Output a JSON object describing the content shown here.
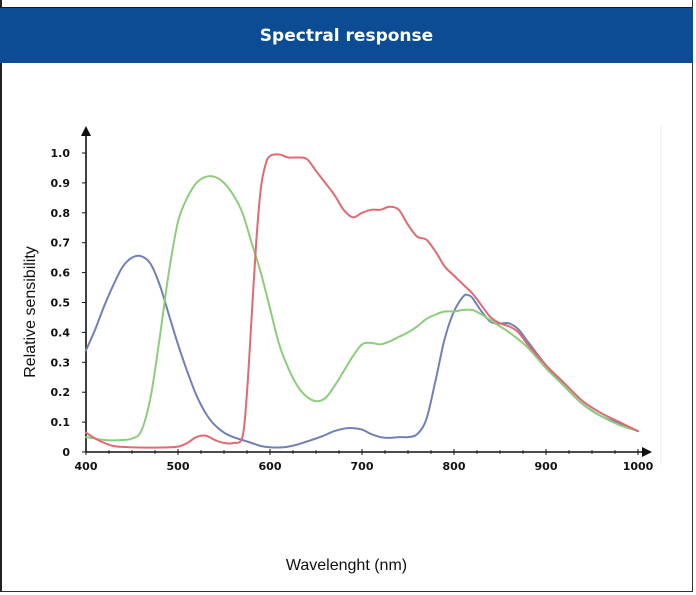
{
  "header": {
    "title": "Spectral response"
  },
  "chart_data": {
    "type": "line",
    "title": "Spectral response",
    "xlabel": "Wavelenght (nm)",
    "ylabel": "Relative sensibility",
    "xlim": [
      400,
      1000
    ],
    "ylim": [
      0,
      1.0
    ],
    "x_ticks": [
      "400",
      "500",
      "600",
      "700",
      "800",
      "900",
      "1000"
    ],
    "y_ticks": [
      "0",
      "0.1",
      "0.2",
      "0.3",
      "0.4",
      "0.5",
      "0.6",
      "0.7",
      "0.8",
      "0.9",
      "1.0"
    ],
    "grid": false,
    "legend": "none",
    "series": [
      {
        "color": "#7080b8",
        "points": [
          [
            400,
            0.34
          ],
          [
            410,
            0.41
          ],
          [
            420,
            0.49
          ],
          [
            430,
            0.56
          ],
          [
            440,
            0.62
          ],
          [
            450,
            0.65
          ],
          [
            460,
            0.655
          ],
          [
            470,
            0.63
          ],
          [
            480,
            0.56
          ],
          [
            490,
            0.46
          ],
          [
            500,
            0.36
          ],
          [
            510,
            0.27
          ],
          [
            520,
            0.19
          ],
          [
            530,
            0.13
          ],
          [
            540,
            0.09
          ],
          [
            550,
            0.065
          ],
          [
            560,
            0.05
          ],
          [
            570,
            0.04
          ],
          [
            580,
            0.03
          ],
          [
            590,
            0.02
          ],
          [
            600,
            0.016
          ],
          [
            610,
            0.015
          ],
          [
            620,
            0.018
          ],
          [
            630,
            0.025
          ],
          [
            640,
            0.035
          ],
          [
            650,
            0.045
          ],
          [
            660,
            0.057
          ],
          [
            670,
            0.07
          ],
          [
            680,
            0.078
          ],
          [
            690,
            0.08
          ],
          [
            700,
            0.075
          ],
          [
            710,
            0.06
          ],
          [
            720,
            0.05
          ],
          [
            730,
            0.047
          ],
          [
            740,
            0.05
          ],
          [
            750,
            0.05
          ],
          [
            760,
            0.06
          ],
          [
            770,
            0.11
          ],
          [
            780,
            0.24
          ],
          [
            790,
            0.38
          ],
          [
            800,
            0.47
          ],
          [
            810,
            0.52
          ],
          [
            815,
            0.525
          ],
          [
            820,
            0.515
          ],
          [
            830,
            0.47
          ],
          [
            840,
            0.435
          ],
          [
            850,
            0.43
          ],
          [
            860,
            0.43
          ],
          [
            870,
            0.41
          ],
          [
            880,
            0.37
          ],
          [
            900,
            0.29
          ],
          [
            920,
            0.22
          ],
          [
            940,
            0.16
          ],
          [
            960,
            0.12
          ],
          [
            980,
            0.095
          ],
          [
            1000,
            0.07
          ]
        ]
      },
      {
        "color": "#8ccd7c",
        "points": [
          [
            400,
            0.05
          ],
          [
            420,
            0.04
          ],
          [
            440,
            0.04
          ],
          [
            450,
            0.045
          ],
          [
            460,
            0.07
          ],
          [
            470,
            0.18
          ],
          [
            480,
            0.38
          ],
          [
            490,
            0.6
          ],
          [
            500,
            0.77
          ],
          [
            510,
            0.85
          ],
          [
            520,
            0.9
          ],
          [
            530,
            0.92
          ],
          [
            540,
            0.92
          ],
          [
            550,
            0.9
          ],
          [
            560,
            0.86
          ],
          [
            570,
            0.8
          ],
          [
            580,
            0.7
          ],
          [
            590,
            0.6
          ],
          [
            600,
            0.48
          ],
          [
            610,
            0.36
          ],
          [
            620,
            0.28
          ],
          [
            630,
            0.22
          ],
          [
            640,
            0.185
          ],
          [
            650,
            0.17
          ],
          [
            660,
            0.18
          ],
          [
            670,
            0.22
          ],
          [
            680,
            0.27
          ],
          [
            690,
            0.32
          ],
          [
            700,
            0.36
          ],
          [
            710,
            0.365
          ],
          [
            720,
            0.36
          ],
          [
            730,
            0.37
          ],
          [
            740,
            0.385
          ],
          [
            750,
            0.4
          ],
          [
            760,
            0.42
          ],
          [
            770,
            0.445
          ],
          [
            780,
            0.46
          ],
          [
            790,
            0.47
          ],
          [
            800,
            0.47
          ],
          [
            810,
            0.475
          ],
          [
            820,
            0.475
          ],
          [
            830,
            0.46
          ],
          [
            840,
            0.44
          ],
          [
            850,
            0.42
          ],
          [
            860,
            0.4
          ],
          [
            880,
            0.35
          ],
          [
            900,
            0.28
          ],
          [
            920,
            0.22
          ],
          [
            940,
            0.16
          ],
          [
            960,
            0.12
          ],
          [
            980,
            0.09
          ],
          [
            1000,
            0.07
          ]
        ]
      },
      {
        "color": "#e06a72",
        "points": [
          [
            400,
            0.065
          ],
          [
            410,
            0.045
          ],
          [
            420,
            0.03
          ],
          [
            430,
            0.02
          ],
          [
            440,
            0.017
          ],
          [
            460,
            0.015
          ],
          [
            480,
            0.015
          ],
          [
            500,
            0.018
          ],
          [
            510,
            0.03
          ],
          [
            520,
            0.05
          ],
          [
            530,
            0.055
          ],
          [
            540,
            0.04
          ],
          [
            550,
            0.03
          ],
          [
            560,
            0.03
          ],
          [
            570,
            0.05
          ],
          [
            575,
            0.2
          ],
          [
            580,
            0.45
          ],
          [
            585,
            0.7
          ],
          [
            590,
            0.88
          ],
          [
            595,
            0.96
          ],
          [
            600,
            0.99
          ],
          [
            610,
            0.995
          ],
          [
            620,
            0.985
          ],
          [
            630,
            0.985
          ],
          [
            640,
            0.98
          ],
          [
            650,
            0.94
          ],
          [
            660,
            0.9
          ],
          [
            670,
            0.86
          ],
          [
            680,
            0.81
          ],
          [
            690,
            0.785
          ],
          [
            700,
            0.8
          ],
          [
            710,
            0.81
          ],
          [
            720,
            0.81
          ],
          [
            730,
            0.82
          ],
          [
            740,
            0.81
          ],
          [
            750,
            0.76
          ],
          [
            760,
            0.72
          ],
          [
            770,
            0.71
          ],
          [
            780,
            0.67
          ],
          [
            790,
            0.62
          ],
          [
            800,
            0.59
          ],
          [
            810,
            0.56
          ],
          [
            820,
            0.53
          ],
          [
            830,
            0.49
          ],
          [
            840,
            0.45
          ],
          [
            850,
            0.43
          ],
          [
            860,
            0.42
          ],
          [
            870,
            0.4
          ],
          [
            880,
            0.36
          ],
          [
            900,
            0.29
          ],
          [
            920,
            0.23
          ],
          [
            940,
            0.17
          ],
          [
            960,
            0.13
          ],
          [
            980,
            0.1
          ],
          [
            1000,
            0.07
          ]
        ]
      }
    ]
  }
}
